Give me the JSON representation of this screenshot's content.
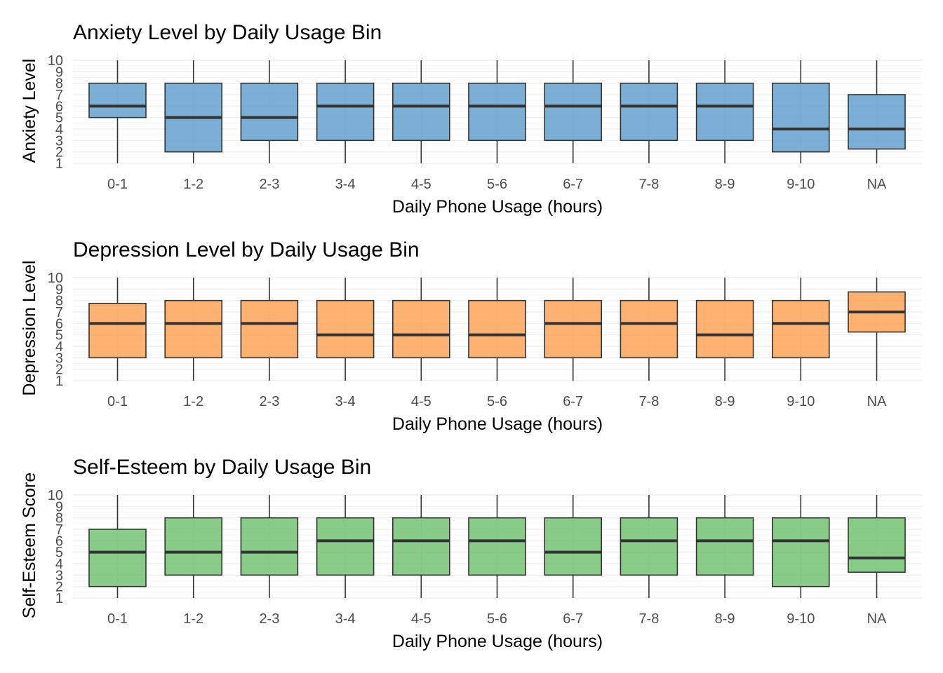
{
  "chart_data": [
    {
      "type": "boxplot",
      "title": "Anxiety Level by Daily Usage Bin",
      "xlabel": "Daily Phone Usage (hours)",
      "ylabel": "Anxiety Level",
      "color": "#5b9bcc",
      "categories": [
        "0-1",
        "1-2",
        "2-3",
        "3-4",
        "4-5",
        "5-6",
        "6-7",
        "7-8",
        "8-9",
        "9-10",
        "NA"
      ],
      "y_ticks": [
        1,
        2,
        3,
        4,
        5,
        6,
        7,
        8,
        9,
        10
      ],
      "ylim": [
        1,
        10
      ],
      "boxes": [
        {
          "min": 1,
          "q1": 5,
          "median": 6,
          "q3": 8,
          "max": 10
        },
        {
          "min": 1,
          "q1": 2,
          "median": 5,
          "q3": 8,
          "max": 10
        },
        {
          "min": 1,
          "q1": 3,
          "median": 5,
          "q3": 8,
          "max": 10
        },
        {
          "min": 1,
          "q1": 3,
          "median": 6,
          "q3": 8,
          "max": 10
        },
        {
          "min": 1,
          "q1": 3,
          "median": 6,
          "q3": 8,
          "max": 10
        },
        {
          "min": 1,
          "q1": 3,
          "median": 6,
          "q3": 8,
          "max": 10
        },
        {
          "min": 1,
          "q1": 3,
          "median": 6,
          "q3": 8,
          "max": 10
        },
        {
          "min": 1,
          "q1": 3,
          "median": 6,
          "q3": 8,
          "max": 10
        },
        {
          "min": 1,
          "q1": 3,
          "median": 6,
          "q3": 8,
          "max": 10
        },
        {
          "min": 1,
          "q1": 2,
          "median": 4,
          "q3": 8,
          "max": 10
        },
        {
          "min": 1,
          "q1": 2.25,
          "median": 4,
          "q3": 7,
          "max": 10
        }
      ]
    },
    {
      "type": "boxplot",
      "title": "Depression Level by Daily Usage Bin",
      "xlabel": "Daily Phone Usage (hours)",
      "ylabel": "Depression Level",
      "color": "#fd9f4d",
      "categories": [
        "0-1",
        "1-2",
        "2-3",
        "3-4",
        "4-5",
        "5-6",
        "6-7",
        "7-8",
        "8-9",
        "9-10",
        "NA"
      ],
      "y_ticks": [
        1,
        2,
        3,
        4,
        5,
        6,
        7,
        8,
        9,
        10
      ],
      "ylim": [
        1,
        10
      ],
      "boxes": [
        {
          "min": 1,
          "q1": 3,
          "median": 6,
          "q3": 7.75,
          "max": 10
        },
        {
          "min": 1,
          "q1": 3,
          "median": 6,
          "q3": 8,
          "max": 10
        },
        {
          "min": 1,
          "q1": 3,
          "median": 6,
          "q3": 8,
          "max": 10
        },
        {
          "min": 1,
          "q1": 3,
          "median": 5,
          "q3": 8,
          "max": 10
        },
        {
          "min": 1,
          "q1": 3,
          "median": 5,
          "q3": 8,
          "max": 10
        },
        {
          "min": 1,
          "q1": 3,
          "median": 5,
          "q3": 8,
          "max": 10
        },
        {
          "min": 1,
          "q1": 3,
          "median": 6,
          "q3": 8,
          "max": 10
        },
        {
          "min": 1,
          "q1": 3,
          "median": 6,
          "q3": 8,
          "max": 10
        },
        {
          "min": 1,
          "q1": 3,
          "median": 5,
          "q3": 8,
          "max": 10
        },
        {
          "min": 1,
          "q1": 3,
          "median": 6,
          "q3": 8,
          "max": 10
        },
        {
          "min": 1,
          "q1": 5.25,
          "median": 7,
          "q3": 8.75,
          "max": 10
        }
      ]
    },
    {
      "type": "boxplot",
      "title": "Self-Esteem by Daily Usage Bin",
      "xlabel": "Daily Phone Usage (hours)",
      "ylabel": "Self-Esteem Score",
      "color": "#6abf6a",
      "categories": [
        "0-1",
        "1-2",
        "2-3",
        "3-4",
        "4-5",
        "5-6",
        "6-7",
        "7-8",
        "8-9",
        "9-10",
        "NA"
      ],
      "y_ticks": [
        1,
        2,
        3,
        4,
        5,
        6,
        7,
        8,
        9,
        10
      ],
      "ylim": [
        1,
        10
      ],
      "boxes": [
        {
          "min": 1,
          "q1": 2,
          "median": 5,
          "q3": 7,
          "max": 10
        },
        {
          "min": 1,
          "q1": 3,
          "median": 5,
          "q3": 8,
          "max": 10
        },
        {
          "min": 1,
          "q1": 3,
          "median": 5,
          "q3": 8,
          "max": 10
        },
        {
          "min": 1,
          "q1": 3,
          "median": 6,
          "q3": 8,
          "max": 10
        },
        {
          "min": 1,
          "q1": 3,
          "median": 6,
          "q3": 8,
          "max": 10
        },
        {
          "min": 1,
          "q1": 3,
          "median": 6,
          "q3": 8,
          "max": 10
        },
        {
          "min": 1,
          "q1": 3,
          "median": 5,
          "q3": 8,
          "max": 10
        },
        {
          "min": 1,
          "q1": 3,
          "median": 6,
          "q3": 8,
          "max": 10
        },
        {
          "min": 1,
          "q1": 3,
          "median": 6,
          "q3": 8,
          "max": 10
        },
        {
          "min": 1,
          "q1": 2,
          "median": 6,
          "q3": 8,
          "max": 10
        },
        {
          "min": 1,
          "q1": 3.25,
          "median": 4.5,
          "q3": 8,
          "max": 10
        }
      ]
    }
  ]
}
